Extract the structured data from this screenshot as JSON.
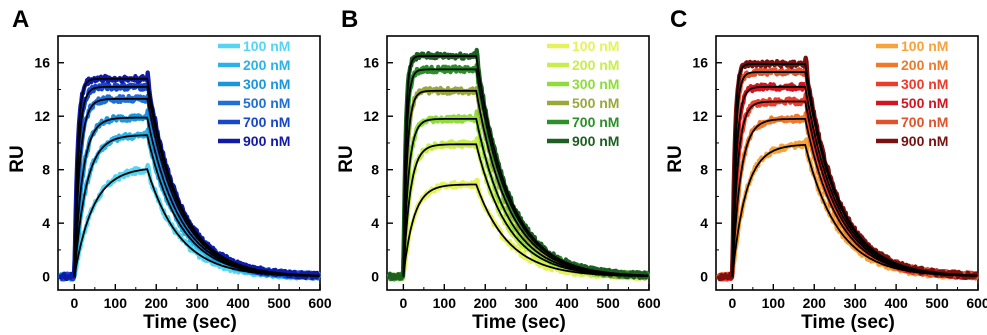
{
  "chart_data": [
    {
      "panel": "A",
      "type": "line",
      "xlabel": "Time (sec)",
      "ylabel": "RU",
      "xlim": [
        -40,
        600
      ],
      "ylim": [
        -1,
        18
      ],
      "xticks": [
        0,
        100,
        200,
        300,
        400,
        500,
        600
      ],
      "yticks": [
        0,
        4,
        8,
        12,
        16
      ],
      "injection_end": 178,
      "legend_position": "top-right",
      "series": [
        {
          "name": "100 nM",
          "color": "#55d5f2",
          "plateau": 8.2,
          "rate": 0.022
        },
        {
          "name": "200 nM",
          "color": "#2ab3e8",
          "plateau": 10.6,
          "rate": 0.035
        },
        {
          "name": "300 nM",
          "color": "#1a96de",
          "plateau": 11.9,
          "rate": 0.05
        },
        {
          "name": "500 nM",
          "color": "#1f6fd8",
          "plateau": 13.3,
          "rate": 0.075
        },
        {
          "name": "700 nM",
          "color": "#1547c8",
          "plateau": 14.2,
          "rate": 0.1
        },
        {
          "name": "900 nM",
          "color": "#0f1aa8",
          "plateau": 14.8,
          "rate": 0.13
        }
      ]
    },
    {
      "panel": "B",
      "type": "line",
      "xlabel": "Time (sec)",
      "ylabel": "RU",
      "xlim": [
        -40,
        600
      ],
      "ylim": [
        -1,
        18
      ],
      "xticks": [
        0,
        100,
        200,
        300,
        400,
        500,
        600
      ],
      "yticks": [
        0,
        4,
        8,
        12,
        16
      ],
      "injection_end": 178,
      "legend_position": "top-right",
      "series": [
        {
          "name": "100 nM",
          "color": "#e6f25a",
          "plateau": 6.9,
          "rate": 0.04
        },
        {
          "name": "200 nM",
          "color": "#c8ee4a",
          "plateau": 9.9,
          "rate": 0.06
        },
        {
          "name": "300 nM",
          "color": "#8fdc3a",
          "plateau": 11.8,
          "rate": 0.08
        },
        {
          "name": "500 nM",
          "color": "#9aa83a",
          "plateau": 13.9,
          "rate": 0.11
        },
        {
          "name": "700 nM",
          "color": "#2b8f2a",
          "plateau": 15.5,
          "rate": 0.14
        },
        {
          "name": "900 nM",
          "color": "#1d5f22",
          "plateau": 16.5,
          "rate": 0.18
        }
      ]
    },
    {
      "panel": "C",
      "type": "line",
      "xlabel": "Time (sec)",
      "ylabel": "RU",
      "xlim": [
        -40,
        600
      ],
      "ylim": [
        -1,
        18
      ],
      "xticks": [
        0,
        100,
        200,
        300,
        400,
        500,
        600
      ],
      "yticks": [
        0,
        4,
        8,
        12,
        16
      ],
      "injection_end": 178,
      "legend_position": "top-right",
      "series": [
        {
          "name": "100 nM",
          "color": "#f7a23a",
          "plateau": 9.9,
          "rate": 0.03
        },
        {
          "name": "200 nM",
          "color": "#f07a28",
          "plateau": 11.8,
          "rate": 0.05
        },
        {
          "name": "300 nM",
          "color": "#f03a2a",
          "plateau": 13.1,
          "rate": 0.075
        },
        {
          "name": "500 nM",
          "color": "#d4141e",
          "plateau": 14.2,
          "rate": 0.1
        },
        {
          "name": "700 nM",
          "color": "#e0522a",
          "plateau": 15.3,
          "rate": 0.13
        },
        {
          "name": "900 nM",
          "color": "#7a1010",
          "plateau": 15.9,
          "rate": 0.17
        }
      ]
    }
  ]
}
